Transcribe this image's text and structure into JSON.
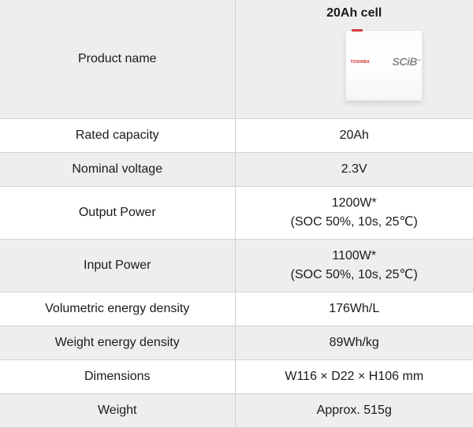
{
  "header": {
    "label": "Product name",
    "title": "20Ah cell",
    "battery_brand": "TOSHIBA",
    "battery_logo": "SCiB",
    "battery_logo_mark": "™"
  },
  "rows": [
    {
      "label": "Rated capacity",
      "value": "20Ah"
    },
    {
      "label": "Nominal voltage",
      "value": "2.3V"
    },
    {
      "label": "Output Power",
      "value": "1200W*",
      "note": "(SOC 50%, 10s, 25℃)"
    },
    {
      "label": "Input Power",
      "value": "1100W*",
      "note": "(SOC 50%, 10s, 25℃)"
    },
    {
      "label": "Volumetric energy density",
      "value": "176Wh/L"
    },
    {
      "label": "Weight energy density",
      "value": "89Wh/kg"
    },
    {
      "label": "Dimensions",
      "value": "W116 × D22 × H106 mm"
    },
    {
      "label": "Weight",
      "value": "Approx. 515g"
    }
  ],
  "colors": {
    "shaded_row": "#eeeeee",
    "border": "#d2d2d2",
    "brand_red": "#d12020"
  }
}
